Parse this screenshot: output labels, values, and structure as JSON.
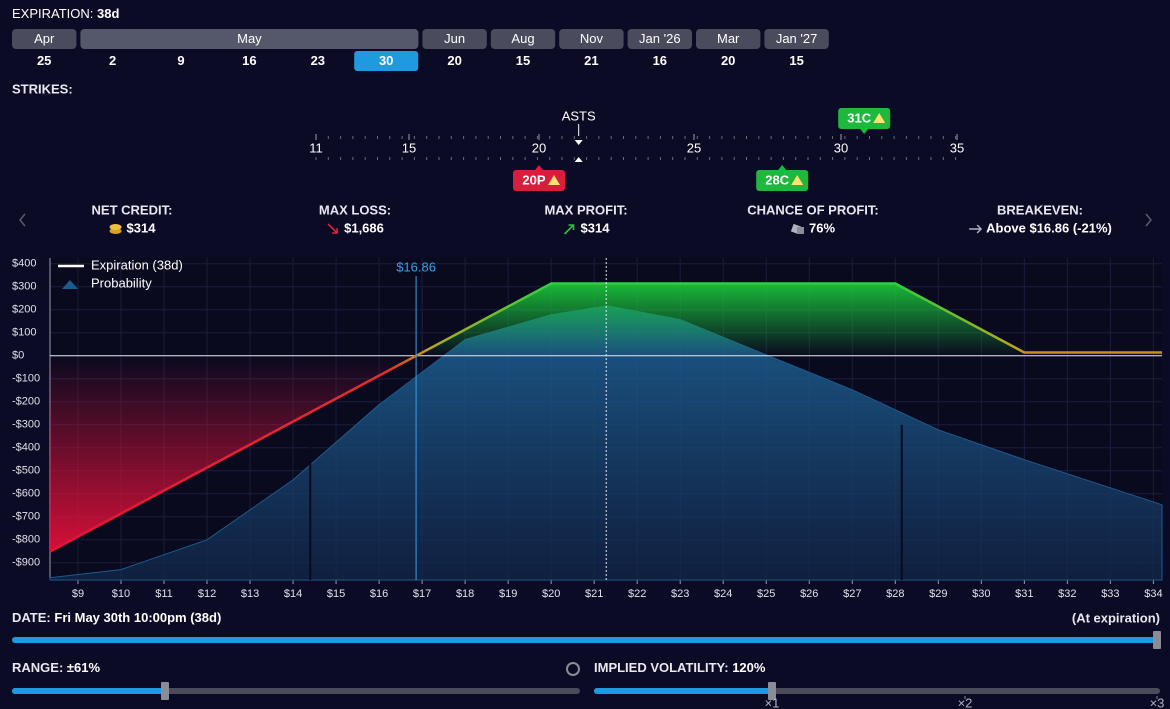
{
  "header": {
    "expiration_label": "EXPIRATION:",
    "expiration_value": "38d"
  },
  "expirations": [
    {
      "month": "Apr",
      "days": [
        {
          "day": 25
        }
      ]
    },
    {
      "month": "May",
      "days": [
        {
          "day": 2
        },
        {
          "day": 9
        },
        {
          "day": 16
        },
        {
          "day": 23
        },
        {
          "day": 30,
          "selected": true
        }
      ]
    },
    {
      "month": "Jun",
      "days": [
        {
          "day": 20
        }
      ]
    },
    {
      "month": "Aug",
      "days": [
        {
          "day": 15
        }
      ]
    },
    {
      "month": "Nov",
      "days": [
        {
          "day": 21
        }
      ]
    },
    {
      "month": "Jan '26",
      "days": [
        {
          "day": 16
        }
      ]
    },
    {
      "month": "Mar",
      "days": [
        {
          "day": 20
        }
      ]
    },
    {
      "month": "Jan '27",
      "days": [
        {
          "day": 15
        }
      ]
    }
  ],
  "strikes": {
    "label": "STRIKES:",
    "underlying": "ASTS",
    "underlying_price": 21.28,
    "ticks": [
      11,
      15,
      20,
      25,
      30,
      35
    ],
    "legs": [
      {
        "label": "20P",
        "strike": 20,
        "action": "sell",
        "color": "#d81e3c"
      },
      {
        "label": "28C",
        "strike": 28,
        "action": "sell",
        "color": "#1eb83c"
      },
      {
        "label": "31C",
        "strike": 31,
        "action": "buy",
        "color": "#1eb83c"
      }
    ]
  },
  "stats": [
    {
      "label": "NET CREDIT:",
      "value": "$314"
    },
    {
      "label": "MAX LOSS:",
      "value": "$1,686"
    },
    {
      "label": "MAX PROFIT:",
      "value": "$314"
    },
    {
      "label": "CHANCE OF PROFIT:",
      "value": "76%"
    },
    {
      "label": "BREAKEVEN:",
      "value": "Above $16.86 (-21%)"
    }
  ],
  "chart_data": {
    "type": "line",
    "series": [
      {
        "name": "Expiration (38d)",
        "color": "#ffffff",
        "x": [
          8.35,
          16.86,
          20,
          28,
          31,
          34.2
        ],
        "values": [
          -851,
          0,
          314,
          314,
          14,
          14
        ]
      },
      {
        "name": "Probability",
        "color": "#1d5a8e",
        "x": [
          8.35,
          10,
          12,
          14,
          16,
          18,
          20,
          21.3,
          23,
          25,
          27,
          29,
          31,
          34.2
        ],
        "values": [
          -965,
          -930,
          -800,
          -540,
          -213,
          70,
          178,
          217,
          157,
          4,
          -148,
          -322,
          -452,
          -648
        ]
      }
    ],
    "xlim": [
      8.35,
      34.2
    ],
    "ylim": [
      -975,
      425
    ],
    "yticks": [
      {
        "value": 400,
        "label": "$400"
      },
      {
        "value": 300,
        "label": "$300"
      },
      {
        "value": 200,
        "label": "$200"
      },
      {
        "value": 100,
        "label": "$100"
      },
      {
        "value": 0,
        "label": "$0"
      },
      {
        "value": -100,
        "label": "-$100"
      },
      {
        "value": -200,
        "label": "-$200"
      },
      {
        "value": -300,
        "label": "-$300"
      },
      {
        "value": -400,
        "label": "-$400"
      },
      {
        "value": -500,
        "label": "-$500"
      },
      {
        "value": -600,
        "label": "-$600"
      },
      {
        "value": -700,
        "label": "-$700"
      },
      {
        "value": -800,
        "label": "-$800"
      },
      {
        "value": -900,
        "label": "-$900"
      }
    ],
    "xticks": [
      {
        "value": 9,
        "label": "$9"
      },
      {
        "value": 10,
        "label": "$10"
      },
      {
        "value": 11,
        "label": "$11"
      },
      {
        "value": 12,
        "label": "$12"
      },
      {
        "value": 13,
        "label": "$13"
      },
      {
        "value": 14,
        "label": "$14"
      },
      {
        "value": 15,
        "label": "$15"
      },
      {
        "value": 16,
        "label": "$16"
      },
      {
        "value": 17,
        "label": "$17"
      },
      {
        "value": 18,
        "label": "$18"
      },
      {
        "value": 19,
        "label": "$19"
      },
      {
        "value": 20,
        "label": "$20"
      },
      {
        "value": 21,
        "label": "$21"
      },
      {
        "value": 22,
        "label": "$22"
      },
      {
        "value": 23,
        "label": "$23"
      },
      {
        "value": 24,
        "label": "$24"
      },
      {
        "value": 25,
        "label": "$25"
      },
      {
        "value": 26,
        "label": "$26"
      },
      {
        "value": 27,
        "label": "$27"
      },
      {
        "value": 28,
        "label": "$28"
      },
      {
        "value": 29,
        "label": "$29"
      },
      {
        "value": 30,
        "label": "$30"
      },
      {
        "value": 31,
        "label": "$31"
      },
      {
        "value": 32,
        "label": "$32"
      },
      {
        "value": 33,
        "label": "$33"
      },
      {
        "value": 34,
        "label": "$34"
      }
    ],
    "breakeven": {
      "value": 16.86,
      "label": "$16.86"
    },
    "std_dev": [
      14.4,
      28.15
    ],
    "grid": true
  },
  "footer": {
    "date_label": "DATE:",
    "date_value": "Fri May 30th 10:00pm (38d)",
    "date_note": "(At expiration)",
    "range_label": "RANGE:",
    "range_value": "±61%",
    "iv_label": "IMPLIED VOLATILITY:",
    "iv_value": "120%",
    "iv_scale": [
      "×1",
      "×2",
      "×3"
    ]
  }
}
